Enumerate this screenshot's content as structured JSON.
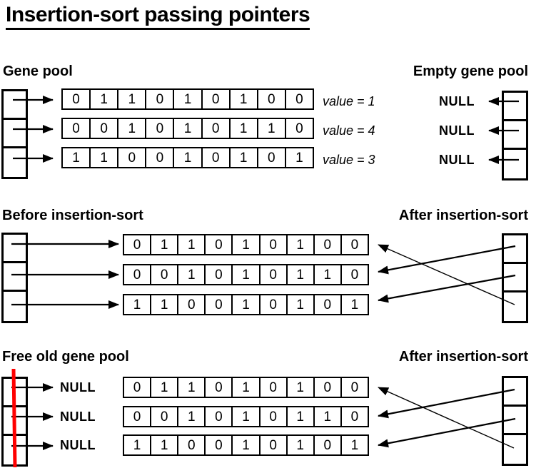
{
  "title": "Insertion-sort passing pointers",
  "colors": {
    "ink": "#000000",
    "free_line_red": "#ff0000"
  },
  "headings": {
    "gene_pool": "Gene pool",
    "empty_gene_pool": "Empty gene pool",
    "before_sort": "Before insertion-sort",
    "after_sort_top": "After insertion-sort",
    "free_old_pool": "Free old gene pool",
    "after_sort_bottom": "After insertion-sort"
  },
  "gene_rows": {
    "row1": {
      "bits": [
        "0",
        "1",
        "1",
        "0",
        "1",
        "0",
        "1",
        "0",
        "0"
      ],
      "value_label": "value = 1"
    },
    "row2": {
      "bits": [
        "0",
        "0",
        "1",
        "0",
        "1",
        "0",
        "1",
        "1",
        "0"
      ],
      "value_label": "value = 4"
    },
    "row3": {
      "bits": [
        "1",
        "1",
        "0",
        "0",
        "1",
        "0",
        "1",
        "0",
        "1"
      ],
      "value_label": "value = 3"
    }
  },
  "null_labels": {
    "empty_pool": [
      "NULL",
      "NULL",
      "NULL"
    ],
    "free_pool": [
      "NULL",
      "NULL",
      "NULL"
    ]
  },
  "after_sort_pointers": [
    {
      "pool_slot": 1,
      "points_to_row": 2
    },
    {
      "pool_slot": 2,
      "points_to_row": 3
    },
    {
      "pool_slot": 3,
      "points_to_row": 1
    }
  ]
}
